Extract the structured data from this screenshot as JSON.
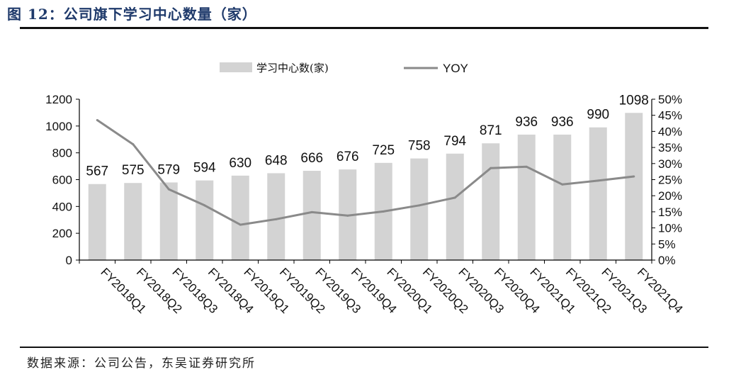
{
  "title": "图 12：公司旗下学习中心数量（家）",
  "source": "数据来源：公司公告，东吴证券研究所",
  "colors": {
    "bar": "#d3d3d3",
    "line": "#8a8a8a",
    "title": "#1f3a6b",
    "axis": "#000000"
  },
  "chart_data": {
    "type": "bar",
    "categories": [
      "FY2018Q1",
      "FY2018Q2",
      "FY2018Q3",
      "FY2018Q4",
      "FY2019Q1",
      "FY2019Q2",
      "FY2019Q3",
      "FY2019Q4",
      "FY2020Q1",
      "FY2020Q2",
      "FY2020Q3",
      "FY2020Q4",
      "FY2021Q1",
      "FY2021Q2",
      "FY2021Q3",
      "FY2021Q4"
    ],
    "series": [
      {
        "name": "学习中心数(家)",
        "type": "bar",
        "axis": "left",
        "values": [
          567,
          575,
          579,
          594,
          630,
          648,
          666,
          676,
          725,
          758,
          794,
          871,
          936,
          936,
          990,
          1098
        ]
      },
      {
        "name": "YOY",
        "type": "line",
        "axis": "right",
        "values": [
          43.5,
          36.0,
          22.0,
          17.0,
          11.0,
          12.7,
          14.9,
          13.8,
          15.1,
          17.0,
          19.4,
          28.6,
          29.0,
          23.5,
          24.7,
          26.0
        ]
      }
    ],
    "ylim_left": [
      0,
      1200
    ],
    "yticks_left": [
      "0",
      "200",
      "400",
      "600",
      "800",
      "1000",
      "1200"
    ],
    "ylim_right": [
      0,
      50
    ],
    "yticks_right": [
      "0%",
      "5%",
      "10%",
      "15%",
      "20%",
      "25%",
      "30%",
      "35%",
      "40%",
      "45%",
      "50%"
    ],
    "legend_position": "top",
    "grid": false
  }
}
